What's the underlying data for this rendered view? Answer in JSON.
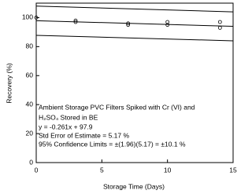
{
  "chart_data": {
    "type": "scatter",
    "x_label": "Storage Time (Days)",
    "y_label": "Recovery (%)",
    "x": [
      0,
      3,
      3,
      7,
      7,
      10,
      10,
      14,
      14
    ],
    "values": [
      100,
      97,
      98,
      96,
      95,
      95,
      97,
      97,
      93
    ],
    "color": "#000000",
    "fit_lines": [
      {
        "x": [
          0,
          15
        ],
        "values": [
          108,
          104
        ]
      },
      {
        "x": [
          0,
          15
        ],
        "values": [
          97.9,
          94
        ]
      },
      {
        "x": [
          0,
          15
        ],
        "values": [
          87.8,
          84
        ]
      }
    ],
    "xlim": [
      0,
      15
    ],
    "xticks": [
      0,
      5,
      10,
      15
    ],
    "ylim": [
      0,
      110
    ],
    "yticks": [
      0,
      20,
      40,
      60,
      80,
      100
    ],
    "grid": false,
    "annotations": [
      "Ambient Storage PVC Filters Spiked with Cr (VI) and",
      "H₂SO₄ Stored in BE",
      "y = -0.261x + 97.9",
      "Std Error of Estimate = 5.17 %",
      "95% Confidence Limits = ±(1.96)(5.17) = ±10.1 %"
    ]
  }
}
